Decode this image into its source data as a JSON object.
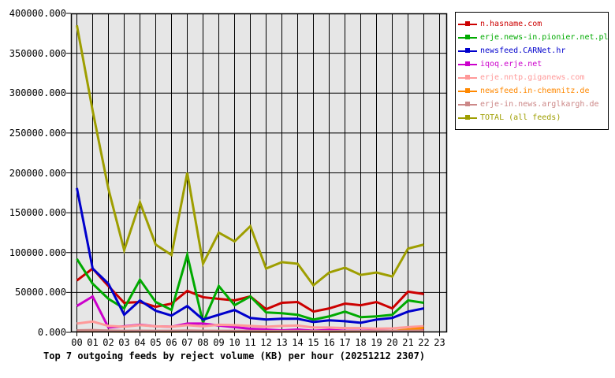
{
  "title": "Top 7 outgoing feeds by reject volume (KB) per hour (20251212 2307)",
  "chart_data": {
    "type": "line",
    "title": "Top 7 outgoing feeds by reject volume (KB) per hour (20251212 2307)",
    "xlabel": "",
    "ylabel": "",
    "x_tick_labels": [
      "00",
      "01",
      "02",
      "03",
      "04",
      "05",
      "06",
      "07",
      "08",
      "09",
      "10",
      "11",
      "12",
      "13",
      "14",
      "15",
      "16",
      "17",
      "18",
      "19",
      "20",
      "21",
      "22",
      "23"
    ],
    "y_tick_labels": [
      "400000.000",
      "350000.000",
      "300000.000",
      "250000.000",
      "200000.000",
      "150000.000",
      "100000.000",
      "50000.000",
      "0.000"
    ],
    "ylim": [
      0,
      400000
    ],
    "y_tick_step": 50000,
    "grid": true,
    "plot_background": "#e6e6e6",
    "grid_color": "#000000",
    "legend_position": "outside-top-right",
    "hours_plotted": "00-22 (no data for 23)",
    "series": [
      {
        "name": "n.hasname.com",
        "color": "#cc0000",
        "values": [
          65000,
          80000,
          58000,
          37000,
          38000,
          32000,
          36000,
          52000,
          44000,
          42000,
          40000,
          45000,
          29000,
          37000,
          38000,
          26000,
          30000,
          36000,
          34000,
          38000,
          30000,
          51000,
          48000
        ]
      },
      {
        "name": "erje.news-in.pionier.net.pl",
        "color": "#00aa00",
        "values": [
          92000,
          61000,
          42000,
          30000,
          66000,
          38000,
          28000,
          97000,
          12000,
          58000,
          34000,
          45000,
          25000,
          24000,
          22000,
          16000,
          20000,
          26000,
          19000,
          20000,
          22000,
          40000,
          37000
        ]
      },
      {
        "name": "newsfeed.CARNet.hr",
        "color": "#0000cc",
        "values": [
          181000,
          80000,
          61000,
          22000,
          40000,
          27000,
          21000,
          33000,
          16000,
          22000,
          28000,
          18000,
          16000,
          17000,
          17000,
          13000,
          15000,
          14000,
          12000,
          16000,
          18000,
          26000,
          30000
        ]
      },
      {
        "name": "iqoq.erje.net",
        "color": "#cc00cc",
        "values": [
          33000,
          45000,
          6000,
          7500,
          9500,
          7500,
          7000,
          11000,
          11000,
          8500,
          6500,
          4500,
          3500,
          2500,
          3500,
          2000,
          3000,
          2000,
          1800,
          2000,
          1500,
          2200,
          2800
        ]
      },
      {
        "name": "erje.nntp.giganews.com",
        "color": "#ff9999",
        "values": [
          11000,
          13500,
          8000,
          7000,
          9000,
          7500,
          7000,
          9000,
          7500,
          9500,
          9000,
          8000,
          7000,
          8000,
          8500,
          6000,
          6000,
          5300,
          5300,
          4600,
          5000,
          6600,
          7600
        ]
      },
      {
        "name": "newsfeed.in-chemnitz.de",
        "color": "#ff8800",
        "values": [
          1200,
          1500,
          1200,
          1000,
          1200,
          1100,
          1000,
          1300,
          1200,
          1100,
          1000,
          1000,
          900,
          1000,
          1100,
          1000,
          900,
          1000,
          1100,
          1200,
          1500,
          3500,
          5500
        ]
      },
      {
        "name": "erje-in.news.arglkargh.de",
        "color": "#cc8888",
        "values": [
          2500,
          2800,
          2200,
          1800,
          2000,
          1900,
          1800,
          2200,
          2000,
          1900,
          1800,
          1700,
          1500,
          1600,
          1700,
          1500,
          1400,
          1500,
          1500,
          1600,
          1700,
          1900,
          2100
        ]
      },
      {
        "name": "TOTAL (all feeds)",
        "color": "#9e9e00",
        "values": [
          385000,
          278000,
          180000,
          103000,
          163000,
          110000,
          97000,
          200000,
          86000,
          125000,
          114000,
          133000,
          80000,
          88000,
          86000,
          59000,
          75000,
          81000,
          72000,
          75000,
          70000,
          105000,
          110000
        ]
      }
    ]
  }
}
